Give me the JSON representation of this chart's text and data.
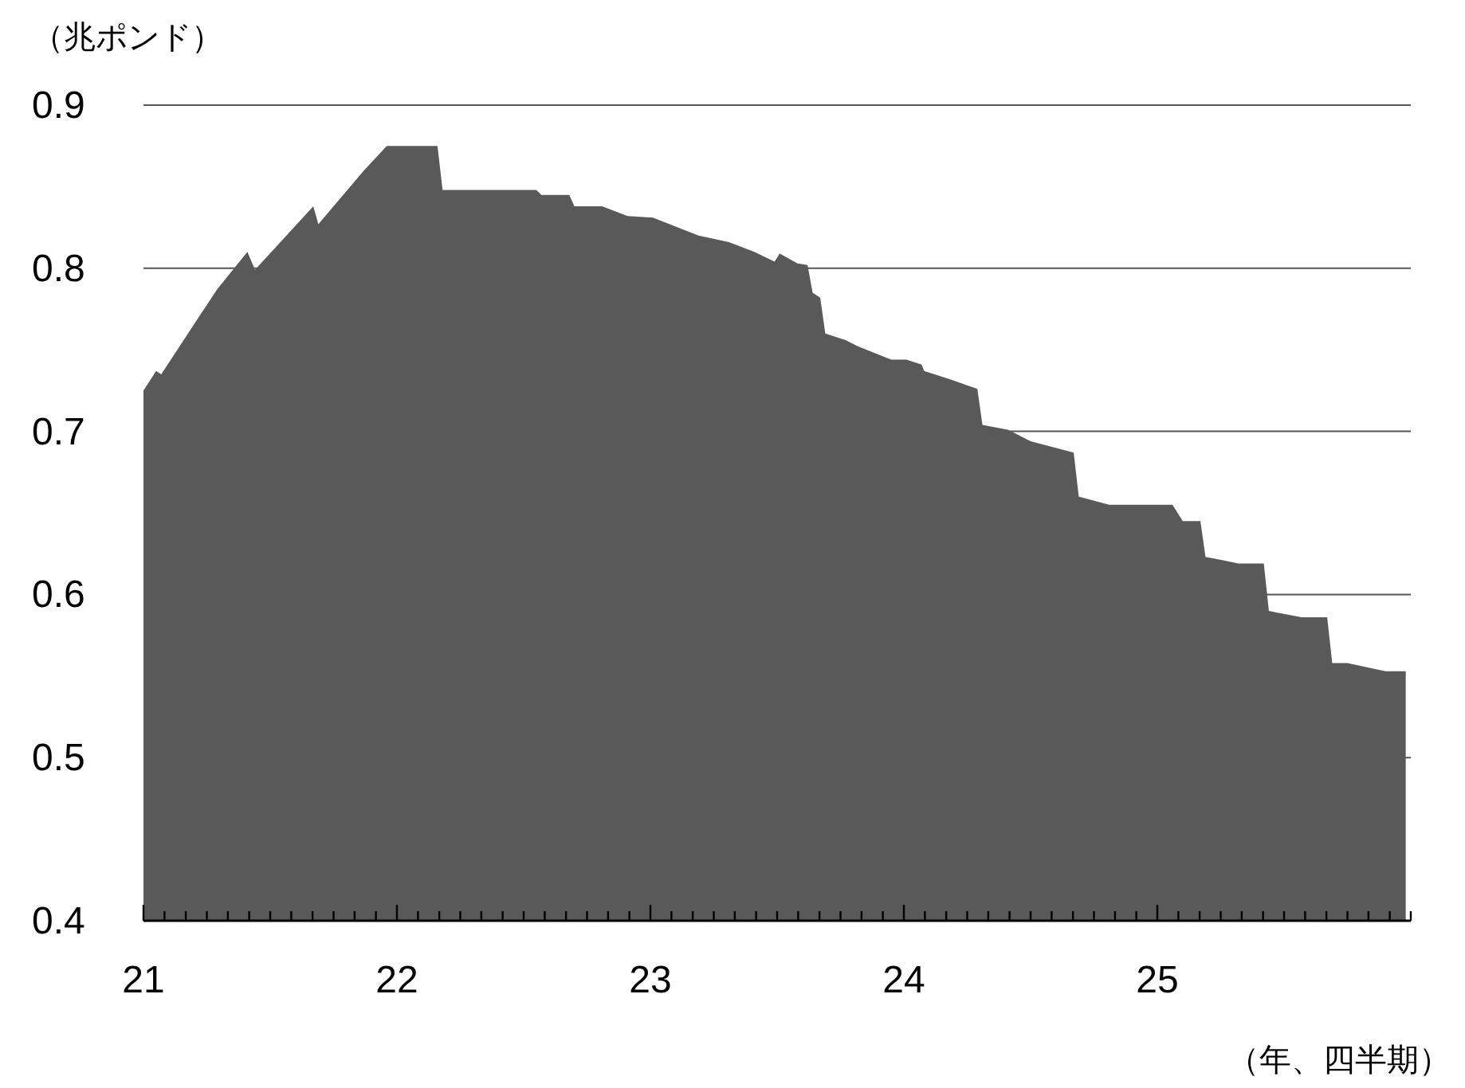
{
  "chart_data": {
    "type": "area",
    "ylabel": "（兆ポンド）",
    "xlabel": "（年、四半期）",
    "xlim": [
      21,
      26
    ],
    "ylim": [
      0.4,
      0.9
    ],
    "yticks": [
      0.4,
      0.5,
      0.6,
      0.7,
      0.8,
      0.9
    ],
    "xticks": [
      21,
      {
        "value": 21.083,
        "label": null
      },
      {
        "value": 21.167,
        "label": null
      },
      {
        "value": 21.25,
        "label": null
      },
      {
        "value": 21.333,
        "label": null
      },
      {
        "value": 21.417,
        "label": null
      },
      {
        "value": 21.5,
        "label": null
      },
      {
        "value": 21.583,
        "label": null
      },
      {
        "value": 21.667,
        "label": null
      },
      {
        "value": 21.75,
        "label": null
      },
      {
        "value": 21.833,
        "label": null
      },
      {
        "value": 21.917,
        "label": null
      },
      22,
      {
        "value": 22.083,
        "label": null
      },
      {
        "value": 22.167,
        "label": null
      },
      {
        "value": 22.25,
        "label": null
      },
      {
        "value": 22.333,
        "label": null
      },
      {
        "value": 22.417,
        "label": null
      },
      {
        "value": 22.5,
        "label": null
      },
      {
        "value": 22.583,
        "label": null
      },
      {
        "value": 22.667,
        "label": null
      },
      {
        "value": 22.75,
        "label": null
      },
      {
        "value": 22.833,
        "label": null
      },
      {
        "value": 22.917,
        "label": null
      },
      23,
      {
        "value": 23.083,
        "label": null
      },
      {
        "value": 23.167,
        "label": null
      },
      {
        "value": 23.25,
        "label": null
      },
      {
        "value": 23.333,
        "label": null
      },
      {
        "value": 23.417,
        "label": null
      },
      {
        "value": 23.5,
        "label": null
      },
      {
        "value": 23.583,
        "label": null
      },
      {
        "value": 23.667,
        "label": null
      },
      {
        "value": 23.75,
        "label": null
      },
      {
        "value": 23.833,
        "label": null
      },
      {
        "value": 23.917,
        "label": null
      },
      24,
      {
        "value": 24.083,
        "label": null
      },
      {
        "value": 24.167,
        "label": null
      },
      {
        "value": 24.25,
        "label": null
      },
      {
        "value": 24.333,
        "label": null
      },
      {
        "value": 24.417,
        "label": null
      },
      {
        "value": 24.5,
        "label": null
      },
      {
        "value": 24.583,
        "label": null
      },
      {
        "value": 24.667,
        "label": null
      },
      {
        "value": 24.75,
        "label": null
      },
      {
        "value": 24.833,
        "label": null
      },
      {
        "value": 24.917,
        "label": null
      },
      25,
      {
        "value": 25.083,
        "label": null
      },
      {
        "value": 25.167,
        "label": null
      },
      {
        "value": 25.25,
        "label": null
      },
      {
        "value": 25.333,
        "label": null
      },
      {
        "value": 25.417,
        "label": null
      },
      {
        "value": 25.5,
        "label": null
      },
      {
        "value": 25.583,
        "label": null
      },
      {
        "value": 25.667,
        "label": null
      },
      {
        "value": 25.75,
        "label": null
      },
      {
        "value": 25.833,
        "label": null
      },
      {
        "value": 25.917,
        "label": null
      },
      {
        "value": 26,
        "label": null
      }
    ],
    "grid": "y",
    "x": [
      21.0,
      21.05,
      21.07,
      21.29,
      21.41,
      21.44,
      21.67,
      21.69,
      21.87,
      21.96,
      22.16,
      22.18,
      22.55,
      22.57,
      22.68,
      22.7,
      22.81,
      22.91,
      23.01,
      23.19,
      23.31,
      23.41,
      23.49,
      23.51,
      23.58,
      23.62,
      23.64,
      23.67,
      23.69,
      23.77,
      23.82,
      23.95,
      24.01,
      24.07,
      24.08,
      24.18,
      24.29,
      24.31,
      24.41,
      24.5,
      24.67,
      24.69,
      24.81,
      25.06,
      25.1,
      25.17,
      25.19,
      25.26,
      25.32,
      25.42,
      25.44,
      25.47,
      25.57,
      25.67,
      25.69,
      25.75,
      25.9,
      25.98
    ],
    "series": [
      {
        "color": "#595959",
        "values": [
          0.725,
          0.737,
          0.735,
          0.787,
          0.81,
          0.799,
          0.838,
          0.827,
          0.86,
          0.875,
          0.875,
          0.848,
          0.848,
          0.845,
          0.845,
          0.838,
          0.838,
          0.832,
          0.831,
          0.82,
          0.816,
          0.81,
          0.804,
          0.809,
          0.803,
          0.802,
          0.785,
          0.782,
          0.76,
          0.756,
          0.752,
          0.744,
          0.744,
          0.741,
          0.737,
          0.732,
          0.726,
          0.704,
          0.701,
          0.694,
          0.687,
          0.66,
          0.655,
          0.655,
          0.645,
          0.645,
          0.623,
          0.621,
          0.619,
          0.619,
          0.59,
          0.589,
          0.586,
          0.586,
          0.558,
          0.558,
          0.553,
          0.553
        ]
      }
    ]
  }
}
